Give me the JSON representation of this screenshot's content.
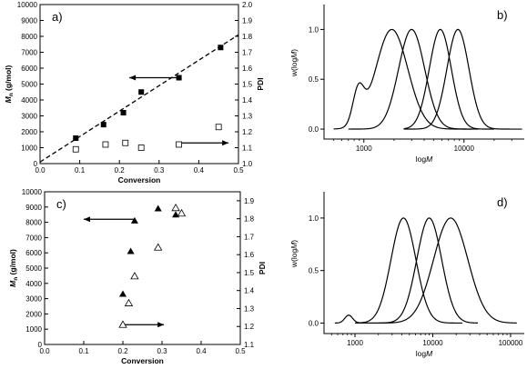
{
  "chart_data": [
    {
      "panel": "a)",
      "type": "scatter",
      "xlabel": "Conversion",
      "ylabel": "Mn (g/mol)",
      "ylabel_main": "M",
      "ylabel_sub": "n",
      "ylabel_rest": " (g/mol)",
      "y2label": "PDI",
      "xlim": [
        0.0,
        0.5
      ],
      "ylim": [
        0,
        10000
      ],
      "y2lim": [
        1.0,
        2.0
      ],
      "xticks": [
        "0.0",
        "0.1",
        "0.2",
        "0.3",
        "0.4",
        "0.5"
      ],
      "yticks": [
        "0",
        "1000",
        "2000",
        "3000",
        "4000",
        "5000",
        "6000",
        "7000",
        "8000",
        "9000",
        "10000"
      ],
      "y2ticks": [
        "1.0",
        "1.1",
        "1.2",
        "1.3",
        "1.4",
        "1.5",
        "1.6",
        "1.7",
        "1.8",
        "1.9",
        "2.0"
      ],
      "series": [
        {
          "marker": "filled-square",
          "axis": "left",
          "x": [
            0.09,
            0.16,
            0.21,
            0.255,
            0.35,
            0.455
          ],
          "y": [
            1600,
            2450,
            3200,
            4500,
            5400,
            7300
          ]
        },
        {
          "marker": "open-square",
          "axis": "right",
          "x": [
            0.09,
            0.165,
            0.215,
            0.255,
            0.35,
            0.45
          ],
          "y": [
            1.09,
            1.12,
            1.13,
            1.1,
            1.12,
            1.23
          ]
        }
      ],
      "fit_line": {
        "x": [
          0.0,
          0.5
        ],
        "y": [
          100,
          8100
        ],
        "style": "dashed"
      },
      "arrows": [
        {
          "points_to": "left",
          "x_from": 0.355,
          "x_to": 0.225,
          "y": 5400,
          "axis": "left"
        },
        {
          "points_to": "right",
          "x_from": 0.355,
          "x_to": 0.475,
          "y": 1.13,
          "axis": "right"
        }
      ]
    },
    {
      "panel": "b)",
      "type": "line",
      "xlabel": "logM",
      "xlabel_main": "log",
      "xlabel_italic": "M",
      "ylabel": "w(logM)",
      "ylabel_main": "w(log",
      "ylabel_italic": "M",
      "ylabel_end": ")",
      "xscale": "log",
      "xlim": [
        400,
        40000
      ],
      "ylim": [
        -0.1,
        1.25
      ],
      "xticks": [
        "1000",
        "10000"
      ],
      "xtick_values": [
        1000,
        10000
      ],
      "yticks": [
        "0.0",
        "0.5",
        "1.0"
      ],
      "ytick_values": [
        0.0,
        0.5,
        1.0
      ],
      "series": [
        {
          "peak": 1900,
          "sigma": 0.16,
          "start": 500,
          "end": 12000,
          "shoulder": {
            "peak": 880,
            "height": 0.34,
            "sigma": 0.055
          }
        },
        {
          "peak": 3000,
          "sigma": 0.13,
          "start": 700,
          "end": 14000
        },
        {
          "peak": 5800,
          "sigma": 0.11,
          "start": 2500,
          "end": 20000
        },
        {
          "peak": 8700,
          "sigma": 0.11,
          "start": 2500,
          "end": 38000
        }
      ]
    },
    {
      "panel": "c)",
      "type": "scatter",
      "xlabel": "Conversion",
      "ylabel": "Mn (g/mol)",
      "ylabel_main": "M",
      "ylabel_sub": "n",
      "ylabel_rest": " (g/mol)",
      "y2label": "PDI",
      "xlim": [
        0.0,
        0.5
      ],
      "ylim": [
        0,
        10000
      ],
      "y2lim": [
        1.1,
        1.95
      ],
      "xticks": [
        "0.0",
        "0.1",
        "0.2",
        "0.3",
        "0.4",
        "0.5"
      ],
      "yticks": [
        "0",
        "1000",
        "2000",
        "3000",
        "4000",
        "5000",
        "6000",
        "7000",
        "8000",
        "9000",
        "10000"
      ],
      "y2ticks": [
        "1.1",
        "1.2",
        "1.3",
        "1.4",
        "1.5",
        "1.6",
        "1.7",
        "1.8",
        "1.9"
      ],
      "series": [
        {
          "marker": "filled-triangle",
          "axis": "left",
          "x": [
            0.2,
            0.22,
            0.23,
            0.29,
            0.335,
            0.35
          ],
          "y": [
            3300,
            6100,
            8100,
            8900,
            8500,
            8600
          ]
        },
        {
          "marker": "open-triangle",
          "axis": "right",
          "x": [
            0.2,
            0.215,
            0.23,
            0.29,
            0.335,
            0.35
          ],
          "y": [
            1.21,
            1.33,
            1.48,
            1.64,
            1.86,
            1.83
          ]
        }
      ],
      "arrows": [
        {
          "points_to": "left",
          "x_from": 0.228,
          "x_to": 0.1,
          "y": 8200,
          "axis": "left"
        },
        {
          "points_to": "right",
          "x_from": 0.2,
          "x_to": 0.305,
          "y": 1.21,
          "axis": "right"
        }
      ]
    },
    {
      "panel": "d)",
      "type": "line",
      "xlabel": "logM",
      "xlabel_main": "log",
      "xlabel_italic": "M",
      "ylabel": "w(logM)",
      "ylabel_main": "w(log",
      "ylabel_italic": "M",
      "ylabel_end": ")",
      "xscale": "log",
      "xlim": [
        400,
        150000
      ],
      "ylim": [
        -0.1,
        1.25
      ],
      "xticks": [
        "1000",
        "10000",
        "100000"
      ],
      "xtick_values": [
        1000,
        10000,
        100000
      ],
      "yticks": [
        "0.0",
        "0.5",
        "1.0"
      ],
      "ytick_values": [
        0.0,
        0.5,
        1.0
      ],
      "series": [
        {
          "peak": 4200,
          "sigma": 0.16,
          "start": 550,
          "end": 24000,
          "shoulder": {
            "peak": 830,
            "height": 0.075,
            "sigma": 0.05
          }
        },
        {
          "peak": 9000,
          "sigma": 0.16,
          "start": 1000,
          "end": 38000
        },
        {
          "peak": 17000,
          "sigma": 0.22,
          "start": 1000,
          "end": 120000
        }
      ]
    }
  ]
}
